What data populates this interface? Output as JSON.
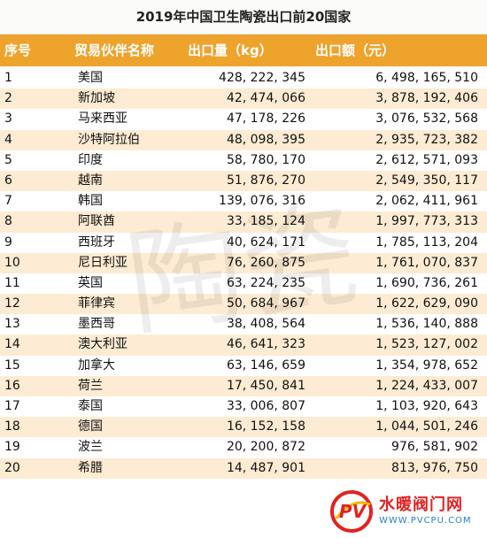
{
  "title": "2019年中国卫生陶瓷出口前20国家",
  "headers": {
    "index": "序号",
    "partner": "贸易伙伴名称",
    "quantity": "出口量（kg）",
    "amount": "出口额（元）"
  },
  "rows": [
    {
      "index": "1",
      "partner": "美国",
      "quantity": "428, 222, 345",
      "amount": "6, 498, 165, 510"
    },
    {
      "index": "2",
      "partner": "新加坡",
      "quantity": "42, 474, 066",
      "amount": "3, 878, 192, 406"
    },
    {
      "index": "3",
      "partner": "马来西亚",
      "quantity": "47, 178, 226",
      "amount": "3, 076, 532, 568"
    },
    {
      "index": "4",
      "partner": "沙特阿拉伯",
      "quantity": "48, 098, 395",
      "amount": "2, 935, 723, 382"
    },
    {
      "index": "5",
      "partner": "印度",
      "quantity": "58, 780, 170",
      "amount": "2, 612, 571, 093"
    },
    {
      "index": "6",
      "partner": "越南",
      "quantity": "51, 876, 270",
      "amount": "2, 549, 350, 117"
    },
    {
      "index": "7",
      "partner": "韩国",
      "quantity": "139, 076, 316",
      "amount": "2, 062, 411, 961"
    },
    {
      "index": "8",
      "partner": "阿联酋",
      "quantity": "33, 185, 124",
      "amount": "1, 997, 773, 313"
    },
    {
      "index": "9",
      "partner": "西班牙",
      "quantity": "40, 624, 171",
      "amount": "1, 785, 113, 204"
    },
    {
      "index": "10",
      "partner": "尼日利亚",
      "quantity": "76, 260, 875",
      "amount": "1, 761, 070, 837"
    },
    {
      "index": "11",
      "partner": "英国",
      "quantity": "63, 224, 235",
      "amount": "1, 690, 736, 261"
    },
    {
      "index": "12",
      "partner": "菲律宾",
      "quantity": "50, 684, 967",
      "amount": "1, 622, 629, 090"
    },
    {
      "index": "13",
      "partner": "墨西哥",
      "quantity": "38, 408, 564",
      "amount": "1, 536, 140, 888"
    },
    {
      "index": "14",
      "partner": "澳大利亚",
      "quantity": "46, 641, 323",
      "amount": "1, 523, 127, 002"
    },
    {
      "index": "15",
      "partner": "加拿大",
      "quantity": "63, 146, 659",
      "amount": "1, 354, 978, 652"
    },
    {
      "index": "16",
      "partner": "荷兰",
      "quantity": "17, 450, 841",
      "amount": "1, 224, 433, 007"
    },
    {
      "index": "17",
      "partner": "泰国",
      "quantity": "33, 006, 807",
      "amount": "1, 103, 920, 643"
    },
    {
      "index": "18",
      "partner": "德国",
      "quantity": "16, 152, 158",
      "amount": "1, 044, 501, 246"
    },
    {
      "index": "19",
      "partner": "波兰",
      "quantity": "20, 200, 872",
      "amount": "976, 581, 902"
    },
    {
      "index": "20",
      "partner": "希腊",
      "quantity": "14, 487, 901",
      "amount": "813, 976, 750"
    }
  ],
  "watermark": {
    "text": "陶瓷"
  },
  "logo": {
    "name": "水暖阀门网",
    "url": "WWW.PVCPU.COM",
    "mark": "PV"
  },
  "colors": {
    "header_bg": "#eea32d",
    "alt_row_bg": "#fdebd3",
    "logo_red": "#e02323",
    "logo_blue": "#2a7ec9"
  }
}
